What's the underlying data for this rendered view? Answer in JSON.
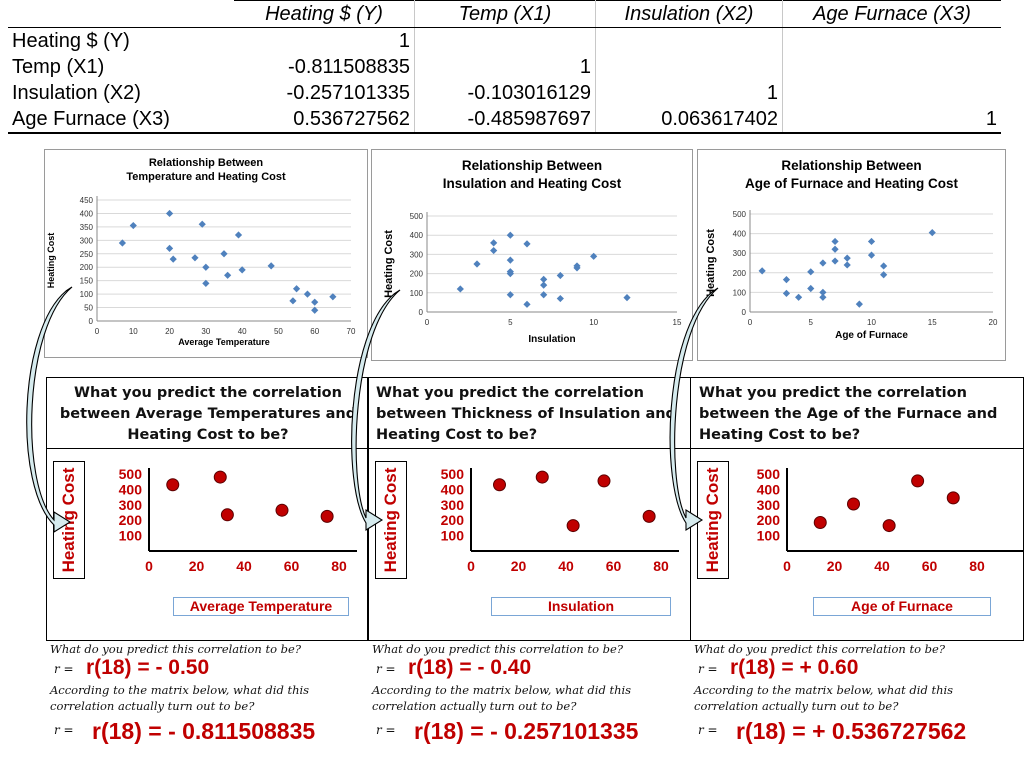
{
  "matrix": {
    "headers": [
      "Heating $ (Y)",
      "Temp (X1)",
      "Insulation (X2)",
      "Age Furnace (X3)"
    ],
    "rows": [
      {
        "label": "Heating $ (Y)",
        "values": [
          "1",
          "",
          "",
          ""
        ]
      },
      {
        "label": "Temp (X1)",
        "values": [
          "-0.811508835",
          "1",
          "",
          ""
        ]
      },
      {
        "label": "Insulation (X2)",
        "values": [
          "-0.257101335",
          "-0.103016129",
          "1",
          ""
        ]
      },
      {
        "label": "Age Furnace (X3)",
        "values": [
          "0.536727562",
          "-0.485987697",
          "0.063617402",
          "1"
        ]
      }
    ]
  },
  "colors": {
    "marker": "#4f81bd",
    "prediction": "#c00000",
    "arrow_fill": "#d6ebee"
  },
  "chart_data": [
    {
      "type": "scatter",
      "title_lines": [
        "Relationship Between",
        "Temperature and Heating Cost"
      ],
      "xlabel": "Average Temperature",
      "ylabel": "Heating Cost",
      "xlim": [
        0,
        70
      ],
      "ylim": [
        0,
        450
      ],
      "xticks": [
        0,
        10,
        20,
        30,
        40,
        50,
        60,
        70
      ],
      "yticks": [
        0,
        50,
        100,
        150,
        200,
        250,
        300,
        350,
        400,
        450
      ],
      "grid": true,
      "legend": "none",
      "points": [
        [
          7,
          290
        ],
        [
          10,
          355
        ],
        [
          20,
          400
        ],
        [
          20,
          270
        ],
        [
          21,
          230
        ],
        [
          27,
          235
        ],
        [
          29,
          360
        ],
        [
          30,
          200
        ],
        [
          30,
          140
        ],
        [
          35,
          250
        ],
        [
          36,
          170
        ],
        [
          39,
          320
        ],
        [
          40,
          190
        ],
        [
          48,
          205
        ],
        [
          54,
          75
        ],
        [
          55,
          120
        ],
        [
          58,
          100
        ],
        [
          60,
          70
        ],
        [
          60,
          40
        ],
        [
          65,
          90
        ]
      ]
    },
    {
      "type": "scatter",
      "title_lines": [
        "Relationship Between",
        "Insulation and Heating Cost"
      ],
      "xlabel": "Insulation",
      "ylabel": "Heating Cost",
      "xlim": [
        0,
        15
      ],
      "ylim": [
        0,
        500
      ],
      "xticks": [
        0,
        5,
        10,
        15
      ],
      "yticks": [
        0,
        100,
        200,
        300,
        400,
        500
      ],
      "grid": true,
      "legend": "none",
      "points": [
        [
          2,
          120
        ],
        [
          3,
          250
        ],
        [
          4,
          360
        ],
        [
          4,
          320
        ],
        [
          5,
          400
        ],
        [
          5,
          270
        ],
        [
          5,
          210
        ],
        [
          5,
          200
        ],
        [
          5,
          90
        ],
        [
          6,
          355
        ],
        [
          6,
          40
        ],
        [
          7,
          170
        ],
        [
          7,
          140
        ],
        [
          7,
          90
        ],
        [
          8,
          190
        ],
        [
          8,
          70
        ],
        [
          9,
          230
        ],
        [
          9,
          240
        ],
        [
          10,
          290
        ],
        [
          12,
          75
        ]
      ]
    },
    {
      "type": "scatter",
      "title_lines": [
        "Relationship Between",
        "Age of Furnace and Heating Cost"
      ],
      "xlabel": "Age of Furnace",
      "ylabel": "Heating Cost",
      "xlim": [
        0,
        20
      ],
      "ylim": [
        0,
        500
      ],
      "xticks": [
        0,
        5,
        10,
        15,
        20
      ],
      "yticks": [
        0,
        100,
        200,
        300,
        400,
        500
      ],
      "grid": true,
      "legend": "none",
      "points": [
        [
          1,
          210
        ],
        [
          3,
          165
        ],
        [
          3,
          95
        ],
        [
          4,
          75
        ],
        [
          5,
          205
        ],
        [
          5,
          120
        ],
        [
          6,
          250
        ],
        [
          6,
          100
        ],
        [
          6,
          75
        ],
        [
          7,
          360
        ],
        [
          7,
          320
        ],
        [
          7,
          260
        ],
        [
          8,
          275
        ],
        [
          8,
          240
        ],
        [
          9,
          40
        ],
        [
          10,
          360
        ],
        [
          10,
          290
        ],
        [
          11,
          235
        ],
        [
          11,
          190
        ],
        [
          15,
          405
        ]
      ]
    }
  ],
  "panels": [
    {
      "question": "What you predict the correlation between Average Temperatures and Heating Cost to be?",
      "ylabel": "Heating Cost",
      "xlabel": "Average Temperature",
      "xticks": [
        "0",
        "20",
        "40",
        "60",
        "80"
      ],
      "yticks": [
        "500",
        "400",
        "300",
        "200",
        "100"
      ],
      "points": [
        [
          10,
          430
        ],
        [
          30,
          480
        ],
        [
          33,
          235
        ],
        [
          56,
          265
        ],
        [
          75,
          225
        ]
      ],
      "predict_prompt": "What do you predict this correlation to be?",
      "r_eq": "r =",
      "predicted": "r(18) = - 0.50",
      "actual_prompt": "According to the matrix below, what did this correlation actually turn out to be?",
      "actual": "r(18) = - 0.811508835"
    },
    {
      "question": "What you predict the correlation between Thickness of Insulation and Heating Cost to be?",
      "ylabel": "Heating Cost",
      "xlabel": "Insulation",
      "xticks": [
        "0",
        "20",
        "40",
        "60",
        "80"
      ],
      "yticks": [
        "500",
        "400",
        "300",
        "200",
        "100"
      ],
      "points": [
        [
          12,
          430
        ],
        [
          30,
          480
        ],
        [
          43,
          165
        ],
        [
          56,
          455
        ],
        [
          75,
          225
        ]
      ],
      "predict_prompt": "What do you predict this correlation to be?",
      "r_eq": "r =",
      "predicted": "r(18) = - 0.40",
      "actual_prompt": "According to the matrix below, what did this correlation actually turn out to be?",
      "actual": "r(18) = - 0.257101335"
    },
    {
      "question": "What you predict the correlation between the Age of the Furnace and Heating Cost to be?",
      "ylabel": "Heating Cost",
      "xlabel": "Age of Furnace",
      "xticks": [
        "0",
        "20",
        "40",
        "60",
        "80"
      ],
      "yticks": [
        "500",
        "400",
        "300",
        "200",
        "100"
      ],
      "points": [
        [
          14,
          185
        ],
        [
          28,
          305
        ],
        [
          43,
          165
        ],
        [
          55,
          455
        ],
        [
          70,
          345
        ]
      ],
      "predict_prompt": "What do you predict this correlation to be?",
      "r_eq": "r =",
      "predicted": "r(18) = + 0.60",
      "actual_prompt": "According to the matrix below, what did this correlation actually turn out to be?",
      "actual": "r(18) = + 0.536727562"
    }
  ]
}
